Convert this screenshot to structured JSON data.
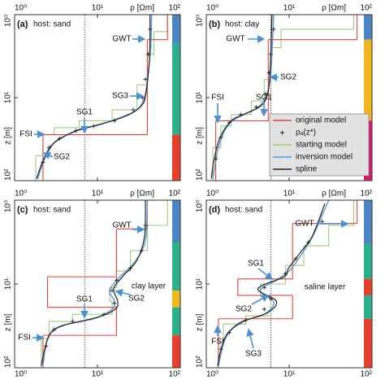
{
  "chart_data": [
    {
      "type": "line",
      "panel": "(a)",
      "title": "host: sand",
      "xlabel": "ρ [Ωm]",
      "ylabel": "z [m]",
      "xscale": "log",
      "yscale": "log",
      "xlim": [
        1,
        100
      ],
      "ylim": [
        1,
        100
      ],
      "y_inverted": true,
      "xticks": [
        {
          "value": 1,
          "label": "10⁰"
        },
        {
          "value": 10,
          "label": "10¹"
        },
        {
          "value": 100,
          "label": "10²"
        }
      ],
      "yticks": [
        {
          "value": 1,
          "label": "10⁰"
        },
        {
          "value": 10,
          "label": "10¹"
        },
        {
          "value": 100,
          "label": "10²"
        }
      ],
      "ref_x": 7,
      "layer_bounds": [
        1,
        2.2,
        28,
        100
      ],
      "layer_colors": [
        "#4a86c5",
        "#2bb08a",
        "#e8402a"
      ],
      "series": [
        {
          "style": "step",
          "color": "#e8413c",
          "values": [
            70,
            40,
            2.2
          ],
          "bounds": [
            1,
            2,
            28,
            100
          ]
        },
        {
          "style": "points",
          "color": "#222222",
          "values": [
            43,
            41,
            38,
            35,
            27,
            16,
            9,
            5.5,
            3.5,
            2.6,
            2.2
          ],
          "z": [
            1.5,
            3,
            6,
            10,
            14,
            19,
            22,
            25,
            31,
            40,
            60
          ]
        },
        {
          "style": "step",
          "color": "#9ccc7a",
          "values": [
            70,
            48,
            40,
            30,
            15,
            6,
            3,
            2.2,
            1.8
          ],
          "bounds": [
            1,
            1.6,
            3,
            7,
            14,
            19,
            23,
            28,
            50,
            100
          ]
        },
        {
          "style": "line",
          "color": "#5b9bd5",
          "values": [
            45,
            44,
            40,
            37,
            30,
            20,
            11,
            6.5,
            4,
            3,
            2.3,
            1.9
          ],
          "z": [
            1,
            2.5,
            6,
            10,
            14,
            17,
            21,
            24,
            29,
            35,
            55,
            95
          ]
        },
        {
          "style": "line",
          "color": "#222222",
          "values": [
            43,
            43,
            42,
            38,
            34,
            25,
            15.7,
            8.9,
            5.7,
            3.6,
            2.7,
            2.15,
            1.84
          ],
          "z": [
            1,
            2,
            4,
            9.5,
            12.5,
            15.7,
            18.8,
            22,
            24.7,
            31,
            39,
            61,
            95
          ]
        }
      ],
      "annotations": [
        "GWT",
        "SG1",
        "SG3",
        "SG2",
        "FSI"
      ]
    },
    {
      "type": "line",
      "panel": "(b)",
      "title": "host: clay",
      "xlabel": "ρ [Ωm]",
      "ylabel": "z [m]",
      "xscale": "log",
      "yscale": "log",
      "xlim": [
        1,
        100
      ],
      "ylim": [
        1,
        100
      ],
      "y_inverted": true,
      "xticks": [
        {
          "value": 1,
          "label": "10⁰"
        },
        {
          "value": 10,
          "label": "10¹"
        },
        {
          "value": 100,
          "label": "10²"
        }
      ],
      "yticks": [
        {
          "value": 1,
          "label": "10⁰"
        },
        {
          "value": 10,
          "label": "10¹"
        },
        {
          "value": 100,
          "label": "10²"
        }
      ],
      "ref_x": 6,
      "layer_bounds": [
        1,
        2,
        19,
        100
      ],
      "layer_colors": [
        "#4a86c5",
        "#f2b51c",
        "#e0156b"
      ],
      "legend": "center-right",
      "series": [
        {
          "name": "original model",
          "style": "step",
          "color": "#e8413c",
          "values": [
            66,
            5.6,
            1.3
          ],
          "bounds": [
            1,
            2,
            19,
            100
          ]
        },
        {
          "name": "ρₐ(z*)",
          "style": "points",
          "color": "#222222",
          "values": [
            6.5,
            6,
            5.7,
            5.2,
            4,
            2.6,
            1.9,
            1.5,
            1.3
          ],
          "z": [
            1.5,
            3,
            5,
            9,
            13,
            16,
            20,
            30,
            55
          ]
        },
        {
          "name": "starting model",
          "style": "step",
          "color": "#9ccc7a",
          "values": [
            60,
            8,
            6,
            5,
            3.5,
            2,
            1.5,
            1.2
          ],
          "bounds": [
            1,
            1.5,
            2.5,
            6,
            11,
            16,
            22,
            40,
            100
          ]
        },
        {
          "name": "inversion model",
          "style": "line",
          "color": "#5b9bd5",
          "values": [
            6.5,
            6.2,
            5.9,
            5.2,
            4,
            2.5,
            1.8,
            1.4,
            1.2
          ],
          "z": [
            1,
            3,
            6,
            10,
            13.5,
            17,
            22,
            40,
            95
          ]
        },
        {
          "name": "spline",
          "style": "line",
          "color": "#222222",
          "values": [
            6.2,
            6,
            5.8,
            5.5,
            4.6,
            2.8,
            2,
            1.45,
            1.22,
            1.15
          ],
          "z": [
            1,
            3,
            6,
            9,
            12.5,
            16,
            19,
            31,
            61,
            95
          ]
        }
      ],
      "annotations": [
        "GWT",
        "SG2",
        "SG1",
        "FSI"
      ]
    },
    {
      "type": "line",
      "panel": "(c)",
      "title": "host: sand",
      "xlabel": "ρ [Ωm]",
      "ylabel": "z [m]",
      "xscale": "log",
      "yscale": "log",
      "xlim": [
        1,
        100
      ],
      "ylim": [
        1,
        100
      ],
      "y_inverted": true,
      "xticks": [
        {
          "value": 1,
          "label": "10⁰"
        },
        {
          "value": 10,
          "label": "10¹"
        },
        {
          "value": 100,
          "label": "10²"
        }
      ],
      "yticks": [
        {
          "value": 1,
          "label": "10⁰"
        },
        {
          "value": 10,
          "label": "10¹"
        },
        {
          "value": 100,
          "label": "10²"
        }
      ],
      "ref_x": 7,
      "layer_bounds": [
        1,
        3.2,
        12,
        19,
        41,
        100
      ],
      "layer_colors": [
        "#4a86c5",
        "#2bb08a",
        "#f2b51c",
        "#2bb08a",
        "#e8402a"
      ],
      "series": [
        {
          "style": "step",
          "color": "#e8413c",
          "values": [
            40,
            17,
            2.5,
            17,
            2.2
          ],
          "bounds": [
            1,
            2.2,
            8.2,
            19,
            41,
            100
          ]
        },
        {
          "style": "points",
          "color": "#222222",
          "values": [
            38,
            34,
            25,
            17,
            15,
            16,
            12,
            5,
            3,
            2.4
          ],
          "z": [
            2,
            4,
            6.5,
            9,
            12,
            17,
            23,
            28,
            35,
            55
          ]
        },
        {
          "style": "step",
          "color": "#9ccc7a",
          "values": [
            70,
            40,
            25,
            17,
            14,
            15,
            5,
            2.6,
            2.1
          ],
          "bounds": [
            1,
            2,
            4,
            7,
            11,
            16,
            23,
            28,
            45,
            100
          ]
        },
        {
          "style": "line",
          "color": "#5b9bd5",
          "values": [
            40,
            38,
            28,
            18,
            14,
            16,
            15,
            9,
            3.5,
            2.5,
            2.2
          ],
          "z": [
            1,
            3,
            5.5,
            8.5,
            12,
            16,
            20,
            26,
            32,
            45,
            95
          ]
        },
        {
          "style": "line",
          "color": "#222222",
          "values": [
            38,
            37,
            30,
            20,
            15.7,
            17.5,
            16.4,
            10,
            4,
            2.7,
            2.3,
            2.1
          ],
          "z": [
            1,
            2.7,
            5.2,
            8.2,
            11.4,
            16,
            20,
            25,
            31,
            39,
            61,
            95
          ]
        }
      ],
      "annotations": [
        "GWT",
        "SG1",
        "SG2",
        "clay layer",
        "FSI"
      ]
    },
    {
      "type": "line",
      "panel": "(d)",
      "title": "host: sand",
      "xlabel": "ρ [Ωm]",
      "ylabel": "z [m]",
      "xscale": "log",
      "yscale": "log",
      "xlim": [
        1,
        100
      ],
      "ylim": [
        1,
        100
      ],
      "y_inverted": true,
      "xticks": [
        {
          "value": 1,
          "label": "10⁰"
        },
        {
          "value": 10,
          "label": "10¹"
        },
        {
          "value": 100,
          "label": "10²"
        }
      ],
      "yticks": [
        {
          "value": 1,
          "label": "10⁰"
        },
        {
          "value": 10,
          "label": "10¹"
        },
        {
          "value": 100,
          "label": "10²"
        }
      ],
      "ref_x": 6,
      "layer_bounds": [
        1,
        3.3,
        8.7,
        13.7,
        26,
        100
      ],
      "layer_colors": [
        "#4a86c5",
        "#2bb08a",
        "#e8402a",
        "#2bb08a",
        "#e8402a"
      ],
      "series": [
        {
          "style": "step",
          "color": "#e8413c",
          "values": [
            66,
            11,
            2.4,
            11,
            1.4
          ],
          "bounds": [
            1,
            1.9,
            8.7,
            13.7,
            26,
            100
          ]
        },
        {
          "style": "points",
          "color": "#222222",
          "values": [
            25,
            17,
            12,
            9,
            5,
            6,
            5,
            3,
            1.9,
            1.5
          ],
          "z": [
            1.8,
            3.2,
            5,
            7.5,
            11,
            15,
            20,
            27,
            38,
            60
          ]
        },
        {
          "style": "step",
          "color": "#9ccc7a",
          "values": [
            60,
            30,
            15,
            9,
            4.5,
            6,
            3,
            1.6,
            1.4
          ],
          "bounds": [
            1,
            2,
            3.5,
            6,
            10,
            14,
            24,
            30,
            50,
            100
          ]
        },
        {
          "style": "line",
          "color": "#5b9bd5",
          "values": [
            30,
            20,
            14,
            10,
            7,
            4.5,
            6.5,
            5,
            2.5,
            1.7,
            1.4
          ],
          "z": [
            1,
            2.5,
            4.5,
            7,
            9,
            12,
            16.5,
            23,
            29,
            45,
            95
          ]
        },
        {
          "style": "line",
          "color": "#222222",
          "values": [
            27,
            19,
            13.7,
            9.8,
            8.7,
            4.2,
            7,
            5.5,
            2.8,
            1.8,
            1.5,
            1.37
          ],
          "z": [
            1.1,
            2.7,
            4.2,
            6.5,
            8.2,
            11.4,
            16,
            22,
            28,
            39,
            61,
            95
          ]
        }
      ],
      "annotations": [
        "GWT",
        "SG1",
        "saline layer",
        "SG2",
        "FSI",
        "SG3"
      ]
    }
  ]
}
